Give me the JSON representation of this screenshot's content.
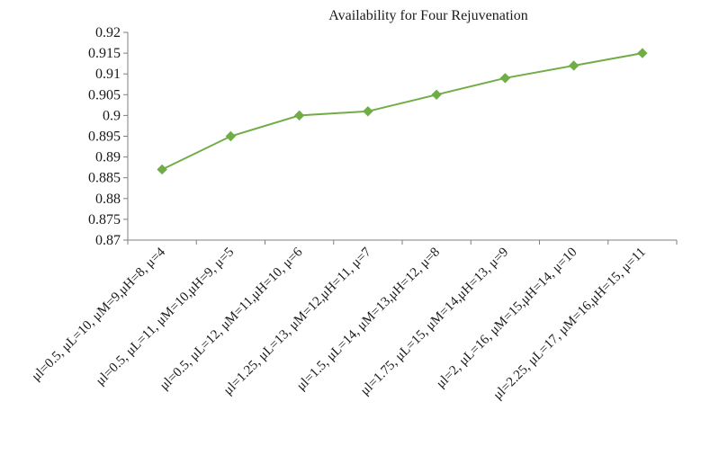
{
  "chart_data": {
    "type": "line",
    "title": "Availability for Four Rejuvenation",
    "xlabel": "",
    "ylabel": "",
    "categories": [
      "μl=0.5, μL=10, μM=9,μH=8, μ=4",
      "μl=0.5, μL=11, μM=10,μH=9, μ=5",
      "μl=0.5, μL=12, μM=11,μH=10, μ=6",
      "μl=1.25, μL=13, μM=12,μH=11, μ=7",
      "μl=1.5, μL=14, μM=13,μH=12, μ=8",
      "μl=1.75, μL=15, μM=14,μH=13, μ=9",
      "μl=2, μL=16, μM=15,μH=14, μ=10",
      "μl=2.25, μL=17, μM=16,μH=15, μ=11"
    ],
    "series": [
      {
        "values": [
          0.887,
          0.895,
          0.9,
          0.901,
          0.905,
          0.909,
          0.912,
          0.915
        ],
        "color": "#70ad47",
        "marker": "diamond"
      }
    ],
    "yticks": [
      "0.87",
      "0.875",
      "0.88",
      "0.885",
      "0.89",
      "0.895",
      "0.9",
      "0.905",
      "0.91",
      "0.915",
      "0.92"
    ],
    "ylim": [
      0.87,
      0.92
    ],
    "grid": false,
    "legend": "none"
  }
}
